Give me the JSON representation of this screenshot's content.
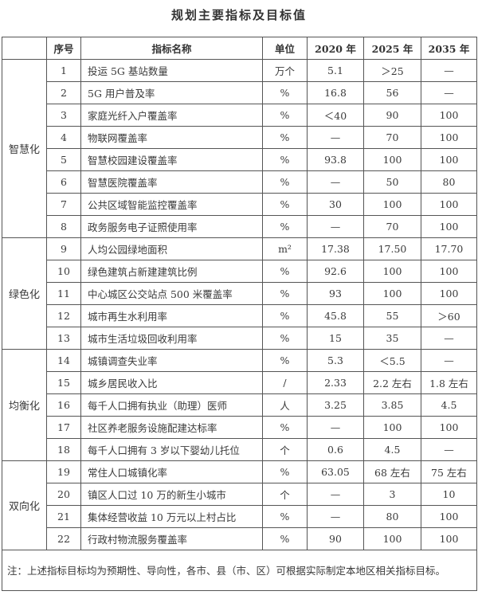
{
  "title": "规划主要指标及目标值",
  "headers": {
    "category": "",
    "seq": "序号",
    "name": "指标名称",
    "unit": "单位",
    "y2020": "2020 年",
    "y2025": "2025 年",
    "y2035": "2035 年"
  },
  "categories": [
    {
      "label": "智慧化",
      "rows": [
        {
          "seq": "1",
          "name": "投运 5G 基站数量",
          "unit": "万个",
          "y2020": "5.1",
          "y2025": "＞25",
          "y2035": "—"
        },
        {
          "seq": "2",
          "name": "5G 用户普及率",
          "unit": "%",
          "y2020": "16.8",
          "y2025": "56",
          "y2035": "—"
        },
        {
          "seq": "3",
          "name": "家庭光纤入户覆盖率",
          "unit": "%",
          "y2020": "＜40",
          "y2025": "90",
          "y2035": "100"
        },
        {
          "seq": "4",
          "name": "物联网覆盖率",
          "unit": "%",
          "y2020": "—",
          "y2025": "70",
          "y2035": "100"
        },
        {
          "seq": "5",
          "name": "智慧校园建设覆盖率",
          "unit": "%",
          "y2020": "93.8",
          "y2025": "100",
          "y2035": "100"
        },
        {
          "seq": "6",
          "name": "智慧医院覆盖率",
          "unit": "%",
          "y2020": "—",
          "y2025": "50",
          "y2035": "80"
        },
        {
          "seq": "7",
          "name": "公共区域智能监控覆盖率",
          "unit": "%",
          "y2020": "30",
          "y2025": "100",
          "y2035": "100"
        },
        {
          "seq": "8",
          "name": "政务服务电子证照使用率",
          "unit": "%",
          "y2020": "—",
          "y2025": "70",
          "y2035": "100"
        }
      ]
    },
    {
      "label": "绿色化",
      "rows": [
        {
          "seq": "9",
          "name": "人均公园绿地面积",
          "unit": "m²",
          "y2020": "17.38",
          "y2025": "17.50",
          "y2035": "17.70"
        },
        {
          "seq": "10",
          "name": "绿色建筑占新建建筑比例",
          "unit": "%",
          "y2020": "92.6",
          "y2025": "100",
          "y2035": "100"
        },
        {
          "seq": "11",
          "name": "中心城区公交站点 500 米覆盖率",
          "unit": "%",
          "y2020": "93",
          "y2025": "100",
          "y2035": "100"
        },
        {
          "seq": "12",
          "name": "城市再生水利用率",
          "unit": "%",
          "y2020": "45.8",
          "y2025": "55",
          "y2035": "＞60"
        },
        {
          "seq": "13",
          "name": "城市生活垃圾回收利用率",
          "unit": "%",
          "y2020": "15",
          "y2025": "35",
          "y2035": "—"
        }
      ]
    },
    {
      "label": "均衡化",
      "rows": [
        {
          "seq": "14",
          "name": "城镇调查失业率",
          "unit": "%",
          "y2020": "5.3",
          "y2025": "＜5.5",
          "y2035": "—"
        },
        {
          "seq": "15",
          "name": "城乡居民收入比",
          "unit": "/",
          "y2020": "2.33",
          "y2025": "2.2 左右",
          "y2035": "1.8 左右"
        },
        {
          "seq": "16",
          "name": "每千人口拥有执业（助理）医师",
          "unit": "人",
          "y2020": "3.25",
          "y2025": "3.85",
          "y2035": "4.5"
        },
        {
          "seq": "17",
          "name": "社区养老服务设施配建达标率",
          "unit": "%",
          "y2020": "—",
          "y2025": "100",
          "y2035": "100"
        },
        {
          "seq": "18",
          "name": "每千人口拥有 3 岁以下婴幼儿托位",
          "unit": "个",
          "y2020": "0.6",
          "y2025": "4.5",
          "y2035": "—"
        }
      ]
    },
    {
      "label": "双向化",
      "rows": [
        {
          "seq": "19",
          "name": "常住人口城镇化率",
          "unit": "%",
          "y2020": "63.05",
          "y2025": "68 左右",
          "y2035": "75 左右"
        },
        {
          "seq": "20",
          "name": "镇区人口过 10 万的新生小城市",
          "unit": "个",
          "y2020": "—",
          "y2025": "3",
          "y2035": "10"
        },
        {
          "seq": "21",
          "name": "集体经营收益 10 万元以上村占比",
          "unit": "%",
          "y2020": "—",
          "y2025": "80",
          "y2035": "100"
        },
        {
          "seq": "22",
          "name": "行政村物流服务覆盖率",
          "unit": "%",
          "y2020": "90",
          "y2025": "100",
          "y2035": "100"
        }
      ]
    }
  ],
  "note": "注：上述指标目标均为预期性、导向性，各市、县（市、区）可根据实际制定本地区相关指标目标。"
}
